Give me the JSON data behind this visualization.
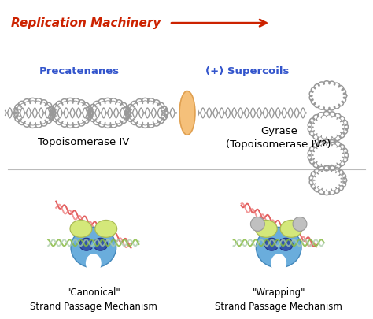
{
  "background_color": "#ffffff",
  "replication_machinery_text": "Replication Machinery",
  "replication_machinery_color": "#cc2200",
  "arrow_color": "#cc2200",
  "precatenanes_text": "Precatenanes",
  "precatenanes_color": "#3355cc",
  "supercoils_text": "(+) Supercoils",
  "supercoils_color": "#3355cc",
  "topoisomerase_text": "Topoisomerase IV",
  "gyrase_text": "Gyrase\n(Topoisomerase IV?)",
  "label_color": "#000000",
  "canonical_text": "\"Canonical\"\nStrand Passage Mechanism",
  "wrapping_text": "\"Wrapping\"\nStrand Passage Mechanism",
  "enzyme_color_face": "#f5c07a",
  "enzyme_color_edge": "#e0a050",
  "dna_color": "#999999",
  "wing_color": "#d4e87a",
  "wing_edge": "#aabb55",
  "blue_body_color": "#6aaddc",
  "blue_body_edge": "#4488bb",
  "dark_blue_color": "#3355aa",
  "dark_blue_edge": "#223388",
  "sphere_color": "#c0c0c0",
  "sphere_edge": "#999999",
  "dna_red1": "#dd4444",
  "dna_red2": "#ee7777",
  "dna_green1": "#88bb44",
  "dna_green2": "#aaccaa"
}
